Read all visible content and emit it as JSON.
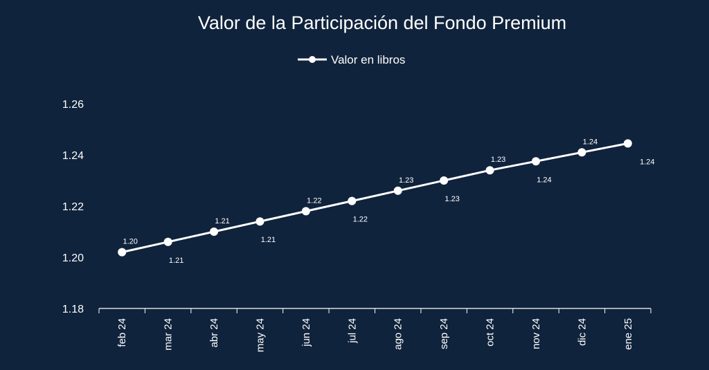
{
  "chart_data": {
    "type": "line",
    "title": "Valor de la Participación del Fondo Premium",
    "xlabel": "",
    "ylabel": "",
    "categories": [
      "feb 24",
      "mar 24",
      "abr 24",
      "may 24",
      "jun 24",
      "jul 24",
      "ago 24",
      "sep 24",
      "oct 24",
      "nov 24",
      "dic 24",
      "ene 25"
    ],
    "series": [
      {
        "name": "Valor en libros",
        "values": [
          1.202,
          1.206,
          1.21,
          1.214,
          1.218,
          1.222,
          1.226,
          1.23,
          1.234,
          1.2375,
          1.241,
          1.2445
        ],
        "data_labels": [
          "1.20",
          "1.21",
          "1.21",
          "1.21",
          "1.22",
          "1.22",
          "1.23",
          "1.23",
          "1.23",
          "1.24",
          "1.24",
          "1.24"
        ],
        "color": "#ffffff"
      }
    ],
    "ylim": [
      1.18,
      1.26
    ],
    "yticks": [
      "1.18",
      "1.20",
      "1.22",
      "1.24",
      "1.26"
    ],
    "grid": false,
    "legend": "top-center"
  },
  "colors": {
    "background": "#10233c",
    "foreground": "#ffffff"
  }
}
